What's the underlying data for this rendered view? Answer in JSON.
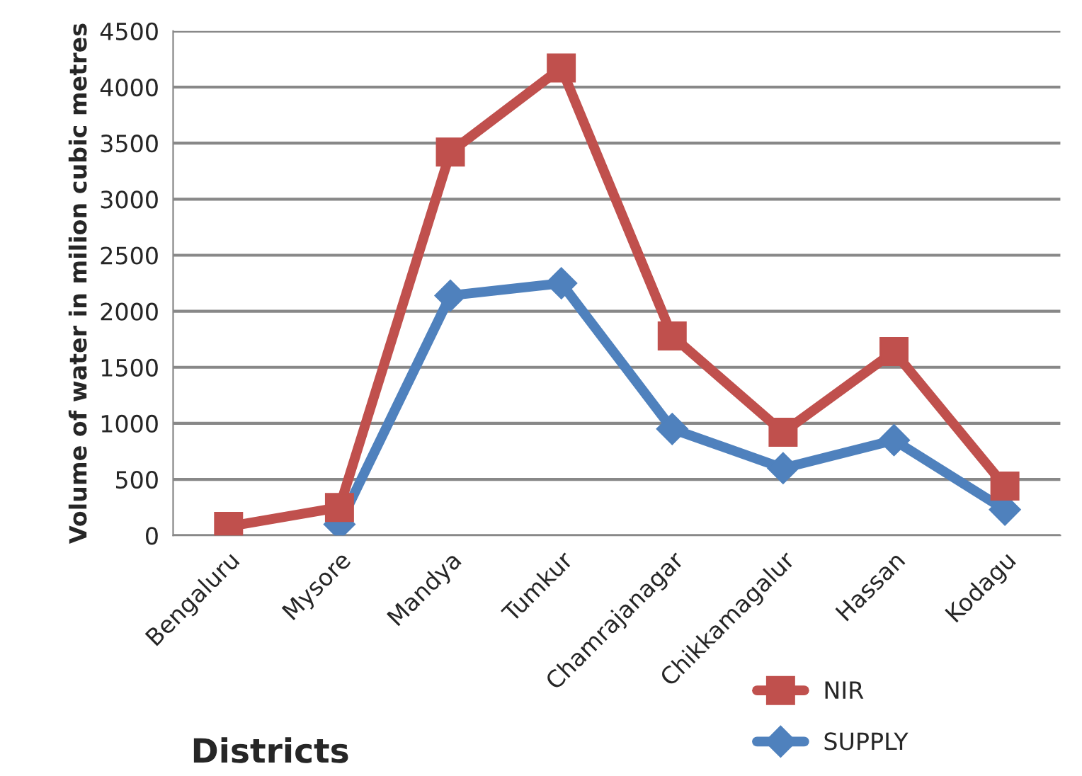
{
  "chart_data": {
    "type": "line",
    "xlabel": "Districts",
    "ylabel": "Volume of water in milion cubic metres",
    "categories": [
      "Bengaluru",
      "Mysore",
      "Mandya",
      "Tumkur",
      "Chamrajanagar",
      "Chikkamagalur",
      "Hassan",
      "Kodagu"
    ],
    "series": [
      {
        "name": "NIR",
        "color": "#c0504d",
        "marker": "square",
        "values": [
          80,
          250,
          3420,
          4170,
          1780,
          920,
          1640,
          440
        ]
      },
      {
        "name": "SUPPLY",
        "color": "#4f81bd",
        "marker": "diamond",
        "values": [
          null,
          100,
          2140,
          2250,
          950,
          600,
          850,
          230
        ]
      }
    ],
    "ylim": [
      0,
      4500
    ],
    "yticks": [
      0,
      500,
      1000,
      1500,
      2000,
      2500,
      3000,
      3500,
      4000,
      4500
    ],
    "grid": "y",
    "legend": "bottom right",
    "line_style": "solid"
  }
}
